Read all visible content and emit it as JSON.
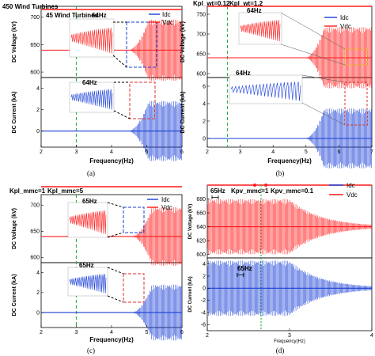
{
  "chart_data": [
    {
      "type": "line",
      "panel_label": "(a)",
      "xlabel": "Frequency(Hz)",
      "x_ticks": [
        "2",
        "3",
        "4",
        "5",
        "6"
      ],
      "xlim": [
        2,
        6
      ],
      "top": {
        "ylabel": "DC Voltage (kV)",
        "y_ticks": [
          "600",
          "650",
          "700"
        ],
        "ylim": [
          590,
          720
        ],
        "baseline": 640,
        "zoom_label": "64Hz"
      },
      "bottom": {
        "ylabel": "DC Current (kA)",
        "y_ticks": [
          "0",
          "2",
          "4"
        ],
        "ylim": [
          -1.5,
          5
        ],
        "baseline": 0,
        "zoom_label": "64Hz"
      },
      "annotations": [
        "450 Wind Turbines",
        "45 Wind Turbines"
      ],
      "marker_x": 3,
      "onset_x": 4.7,
      "legend": [
        "Idc",
        "Vdc"
      ]
    },
    {
      "type": "line",
      "panel_label": "(b)",
      "xlabel": "Frequency(Hz)",
      "x_ticks": [
        "2",
        "3",
        "4",
        "5",
        "6",
        "7"
      ],
      "xlim": [
        2,
        7
      ],
      "top": {
        "ylabel": "DC Voltage (kV)",
        "y_ticks": [
          "600",
          "650",
          "700",
          "750"
        ],
        "ylim": [
          590,
          770
        ],
        "baseline": 640,
        "zoom_label": "64Hz"
      },
      "bottom": {
        "ylabel": "DC Current (kA)",
        "y_ticks": [
          "0",
          "2",
          "4",
          "6"
        ],
        "ylim": [
          -1,
          7
        ],
        "baseline": 0,
        "zoom_label": "64Hz"
      },
      "annotations": [
        "Kpl_wt=0.12",
        "Kpl_wt=1.2"
      ],
      "marker_x": 3,
      "onset_x": 5.2,
      "legend": [
        "Idc",
        "Vdc"
      ]
    },
    {
      "type": "line",
      "panel_label": "(c)",
      "xlabel": "Frequency(Hz)",
      "x_ticks": [
        "2",
        "3",
        "4",
        "5",
        "6"
      ],
      "xlim": [
        2,
        6
      ],
      "top": {
        "ylabel": "DC Voltage (kV)",
        "y_ticks": [
          "600",
          "650",
          "700"
        ],
        "ylim": [
          590,
          720
        ],
        "baseline": 640,
        "zoom_label": "65Hz"
      },
      "bottom": {
        "ylabel": "DC Current (kA)",
        "y_ticks": [
          "0",
          "2",
          "4"
        ],
        "ylim": [
          -1.5,
          5
        ],
        "baseline": 0,
        "zoom_label": "65Hz"
      },
      "annotations": [
        "Kpl_mmc=1",
        "Kpl_mmc=5"
      ],
      "marker_x": 3,
      "onset_x": 4.8,
      "legend": [
        "Idc",
        "Vdc"
      ]
    },
    {
      "type": "line",
      "panel_label": "(d)",
      "xlabel": "Frequency(Hz)",
      "x_ticks": [
        "2",
        "3",
        "4"
      ],
      "xlim": [
        2,
        4
      ],
      "top": {
        "ylabel": "DC Voltage (kV)",
        "y_ticks": [
          "600",
          "620",
          "640",
          "660",
          "680"
        ],
        "ylim": [
          595,
          700
        ],
        "baseline": 640,
        "zoom_label": "65Hz"
      },
      "bottom": {
        "ylabel": "DC Current (kA)",
        "y_ticks": [
          "-6",
          "-4",
          "-2",
          "0",
          "2",
          "4"
        ],
        "ylim": [
          -7,
          5
        ],
        "baseline": 0,
        "zoom_label": "65Hz"
      },
      "annotations": [
        "Kpv_mmc=1",
        "Kpv_mmc=0.1"
      ],
      "marker_x": 3,
      "decay_x": 3,
      "legend": [
        "Idc",
        "Vdc"
      ]
    }
  ],
  "colors": {
    "voltage": "#ff1a1a",
    "current": "#1a3fd6",
    "marker": "#2eb34a",
    "zoom_blue": "#1a3fd6",
    "zoom_red": "#e0302a"
  }
}
